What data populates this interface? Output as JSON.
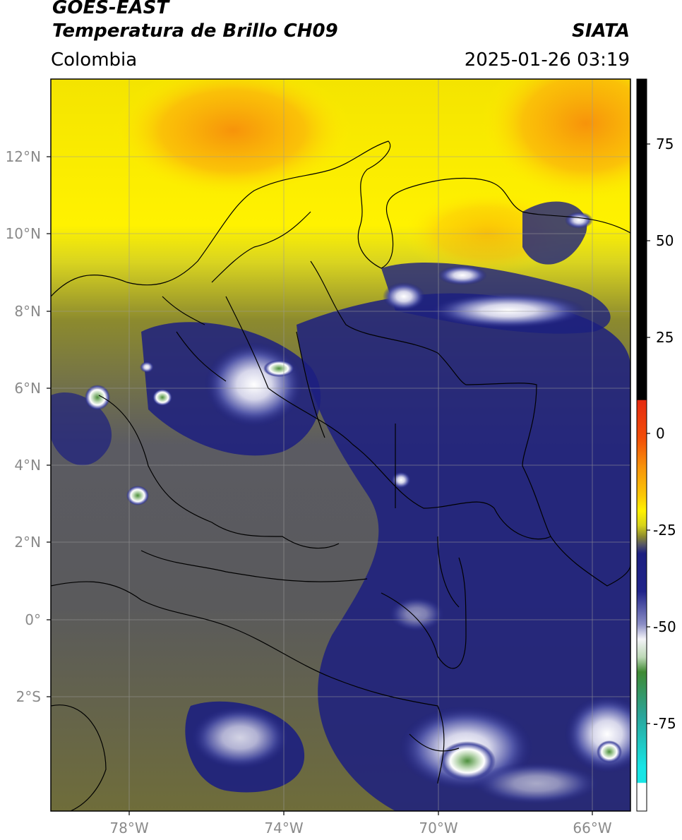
{
  "header": {
    "satellite": "GOES-EAST",
    "product": "Temperatura de Brillo CH09",
    "agency": "SIATA",
    "region": "Colombia",
    "datetime": "2025-01-26 03:19"
  },
  "axes": {
    "lat_labels": [
      "12°N",
      "10°N",
      "8°N",
      "6°N",
      "4°N",
      "2°N",
      "0°",
      "2°S"
    ],
    "lon_labels": [
      "78°W",
      "74°W",
      "70°W",
      "66°W"
    ]
  },
  "colorbar": {
    "tick_labels": [
      "75",
      "50",
      "25",
      "0",
      "-25",
      "-50",
      "-75"
    ],
    "colors": {
      "black": "#000000",
      "red": "#e52a10",
      "orange": "#f7930a",
      "yellow": "#fff200",
      "olive": "#8c8a2e",
      "gray": "#5b5b62",
      "navy": "#1c1f80",
      "white": "#f4f4f8",
      "green": "#3f8a33",
      "teal": "#2aa59a",
      "cyan": "#17e5e5"
    }
  }
}
